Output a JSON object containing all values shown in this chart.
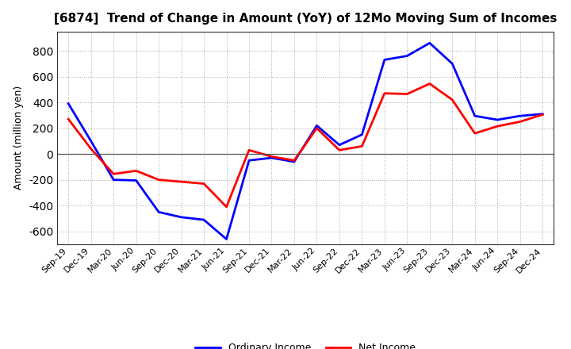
{
  "title": "[6874]  Trend of Change in Amount (YoY) of 12Mo Moving Sum of Incomes",
  "ylabel": "Amount (million yen)",
  "x_labels": [
    "Sep-19",
    "Dec-19",
    "Mar-20",
    "Jun-20",
    "Sep-20",
    "Dec-20",
    "Mar-21",
    "Jun-21",
    "Sep-21",
    "Dec-21",
    "Mar-22",
    "Jun-22",
    "Sep-22",
    "Dec-22",
    "Mar-23",
    "Jun-23",
    "Sep-23",
    "Dec-23",
    "Mar-24",
    "Jun-24",
    "Sep-24",
    "Dec-24"
  ],
  "ordinary_income": [
    390,
    100,
    -200,
    -205,
    -450,
    -490,
    -510,
    -660,
    -50,
    -30,
    -60,
    220,
    70,
    150,
    730,
    760,
    860,
    700,
    295,
    265,
    295,
    310
  ],
  "net_income": [
    270,
    40,
    -155,
    -130,
    -200,
    -215,
    -230,
    -410,
    30,
    -20,
    -50,
    200,
    30,
    60,
    470,
    465,
    545,
    420,
    160,
    215,
    250,
    305
  ],
  "ordinary_color": "#0000FF",
  "net_color": "#FF0000",
  "ylim": [
    -700,
    950
  ],
  "yticks": [
    -600,
    -400,
    -200,
    0,
    200,
    400,
    600,
    800
  ],
  "legend_ordinary": "Ordinary Income",
  "legend_net": "Net Income",
  "bg_color": "#FFFFFF",
  "grid_color": "#AAAAAA",
  "line_width": 2.0,
  "title_fontsize": 11,
  "ylabel_fontsize": 9,
  "tick_fontsize": 8
}
